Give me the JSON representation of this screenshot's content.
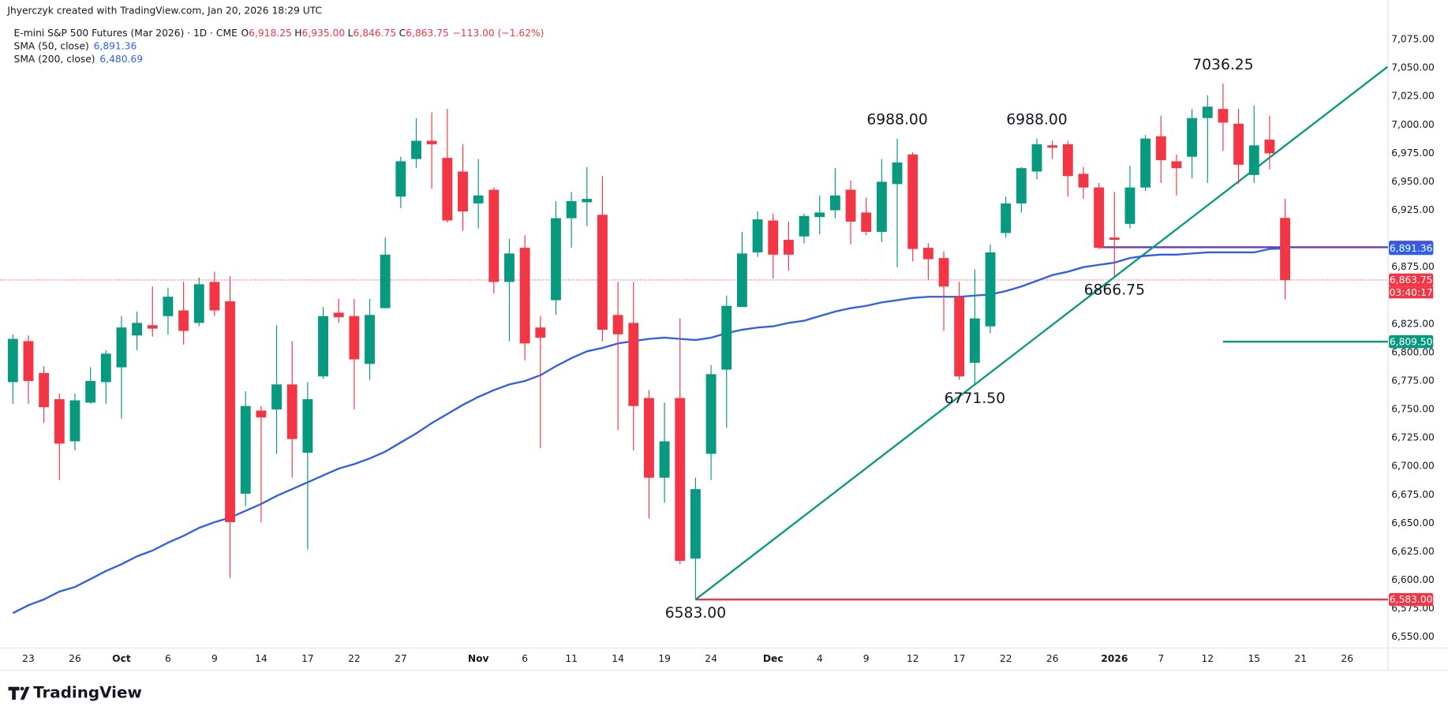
{
  "chart_data": {
    "type": "candlestick",
    "attribution": "Jhyerczyk created with TradingView.com, Jan 20, 2026 18:29 UTC",
    "symbol": "E-mini S&P 500 Futures (Mar 2026) · 1D · CME",
    "ohlc_legend": [
      {
        "key": "O",
        "value": "6,918.25"
      },
      {
        "key": "H",
        "value": "6,935.00"
      },
      {
        "key": "L",
        "value": "6,846.75"
      },
      {
        "key": "C",
        "value": "6,863.75"
      }
    ],
    "change": "−113.00 (−1.62%)",
    "brand": "TradingView",
    "up_color": "#089981",
    "down_color": "#f23645",
    "open": [
      6774,
      6810,
      6782,
      6759,
      6722,
      6756,
      6774,
      6787,
      6815,
      6824,
      6832,
      6837,
      6826,
      6862,
      6845,
      6676,
      6749,
      6750,
      6772,
      6712,
      6779,
      6835,
      6832,
      6790,
      6839,
      6937,
      6970,
      6986,
      6971,
      6959,
      6931,
      6943,
      6862,
      6892,
      6822,
      6846,
      6918,
      6932,
      6921,
      6833,
      6826,
      6760,
      6690,
      6760,
      6619,
      6711,
      6785,
      6840,
      6888,
      6916,
      6899,
      6902,
      6919,
      6925,
      6943,
      6923,
      6906,
      6948,
      6974,
      6892,
      6883,
      6849,
      6791,
      6823,
      6905,
      6931,
      6959,
      6982,
      6983,
      6957,
      6945,
      6901,
      6913,
      6945,
      6990,
      6968,
      6972,
      7006,
      7014,
      7001,
      6956,
      6987,
      6918.25
    ],
    "high": [
      6816,
      6815,
      6788,
      6764,
      6764,
      6787,
      6802,
      6832,
      6836,
      6858,
      6857,
      6862,
      6866,
      6871,
      6867,
      6766,
      6753,
      6824,
      6810,
      6774,
      6840,
      6847,
      6847,
      6847,
      6901,
      6972,
      7006,
      7011,
      7014,
      6983,
      6970,
      6945,
      6900,
      6903,
      6832,
      6933,
      6941,
      6963,
      6955,
      6862,
      6862,
      6767,
      6756,
      6830,
      6690,
      6789,
      6850,
      6906,
      6924,
      6922,
      6915,
      6922,
      6938,
      6962,
      6951,
      6936,
      6970,
      6988,
      6976,
      6896,
      6889,
      6862,
      6873,
      6895,
      6937,
      6963,
      6988,
      6986,
      6986,
      6963,
      6949,
      6941,
      6964,
      6991,
      7008,
      6974,
      7014,
      7026,
      7036.25,
      7014,
      7017,
      7008,
      6935
    ],
    "low": [
      6755,
      6755,
      6738,
      6688,
      6714,
      6755,
      6755,
      6742,
      6802,
      6814,
      6816,
      6807,
      6823,
      6832,
      6602,
      6665,
      6651,
      6711,
      6690,
      6627,
      6777,
      6826,
      6750,
      6776,
      6839,
      6927,
      6962,
      6944,
      6914,
      6907,
      6909,
      6852,
      6810,
      6793,
      6716,
      6833,
      6892,
      6911,
      6810,
      6732,
      6714,
      6654,
      6668,
      6614,
      6583,
      6688,
      6734,
      6840,
      6884,
      6865,
      6872,
      6896,
      6904,
      6918,
      6895,
      6903,
      6897,
      6875,
      6880,
      6864,
      6819,
      6776,
      6771.5,
      6817,
      6901,
      6923,
      6952,
      6970,
      6937,
      6935,
      6891,
      6866.75,
      6909,
      6942,
      6949,
      6938,
      6953,
      6949,
      6977,
      6948,
      6949,
      6961,
      6846.75
    ],
    "close": [
      6812,
      6775,
      6752,
      6720,
      6758,
      6775,
      6799,
      6822,
      6826,
      6821,
      6849,
      6819,
      6860,
      6837,
      6651,
      6753,
      6743,
      6772,
      6724,
      6759,
      6832,
      6831,
      6794,
      6833,
      6886,
      6968,
      6986,
      6983,
      6916,
      6924,
      6938,
      6862,
      6887,
      6808,
      6813,
      6918,
      6933,
      6935,
      6820,
      6816,
      6753,
      6690,
      6722,
      6617,
      6680,
      6781,
      6841,
      6887,
      6917,
      6886,
      6886,
      6920,
      6923,
      6938,
      6915,
      6906,
      6950,
      6967,
      6891,
      6882,
      6858,
      6779,
      6830,
      6888,
      6931,
      6962,
      6983,
      6980,
      6955,
      6945,
      6892,
      6899,
      6945,
      6988,
      6969,
      6962,
      7006,
      7016,
      7002,
      6965,
      6982,
      6975,
      6863.75
    ],
    "series": [
      {
        "name": "SMA (50, close)",
        "value_label": "6,891.36",
        "color": "#2f5fe8",
        "values": [
          6571,
          6578,
          6583,
          6590,
          6594,
          6601,
          6608,
          6614,
          6621,
          6626,
          6633,
          6639,
          6646,
          6651,
          6655,
          6661,
          6667,
          6674,
          6680,
          6686,
          6692,
          6698,
          6702,
          6707,
          6713,
          6721,
          6729,
          6738,
          6746,
          6754,
          6761,
          6767,
          6772,
          6775,
          6780,
          6788,
          6795,
          6801,
          6804,
          6808,
          6810,
          6812,
          6813,
          6812,
          6811,
          6813,
          6817,
          6820,
          6822,
          6823,
          6826,
          6828,
          6832,
          6836,
          6839,
          6841,
          6844,
          6846,
          6848,
          6849,
          6849,
          6849,
          6850,
          6851,
          6854,
          6858,
          6863,
          6868,
          6871,
          6875,
          6877,
          6879,
          6883,
          6885,
          6886,
          6886,
          6887,
          6888,
          6888,
          6888,
          6888,
          6891,
          6891.36
        ]
      },
      {
        "name": "SMA (200, close)",
        "value_label": "6,480.69",
        "color": "#2f5fe8"
      }
    ],
    "xlim": [
      -0.83,
      88.63
    ],
    "xticks": [
      {
        "value": 1,
        "label": "23"
      },
      {
        "value": 4,
        "label": "26"
      },
      {
        "value": 7,
        "label": "Oct"
      },
      {
        "value": 10,
        "label": "6"
      },
      {
        "value": 13,
        "label": "9"
      },
      {
        "value": 16,
        "label": "14"
      },
      {
        "value": 19,
        "label": "17"
      },
      {
        "value": 22,
        "label": "22"
      },
      {
        "value": 25,
        "label": "27"
      },
      {
        "value": 30,
        "label": "Nov"
      },
      {
        "value": 33,
        "label": "6"
      },
      {
        "value": 36,
        "label": "11"
      },
      {
        "value": 39,
        "label": "14"
      },
      {
        "value": 42,
        "label": "19"
      },
      {
        "value": 45,
        "label": "24"
      },
      {
        "value": 49,
        "label": "Dec"
      },
      {
        "value": 52,
        "label": "4"
      },
      {
        "value": 55,
        "label": "9"
      },
      {
        "value": 58,
        "label": "12"
      },
      {
        "value": 61,
        "label": "17"
      },
      {
        "value": 64,
        "label": "22"
      },
      {
        "value": 67,
        "label": "26"
      },
      {
        "value": 71,
        "label": "2026"
      },
      {
        "value": 74,
        "label": "7"
      },
      {
        "value": 77,
        "label": "12"
      },
      {
        "value": 80,
        "label": "15"
      },
      {
        "value": 83,
        "label": "21"
      },
      {
        "value": 86,
        "label": "26"
      }
    ],
    "ylim": [
      6542,
      7087
    ],
    "yticks": [
      {
        "value": 7075,
        "label": "7,075.00"
      },
      {
        "value": 7050,
        "label": "7,050.00"
      },
      {
        "value": 7025,
        "label": "7,025.00"
      },
      {
        "value": 7000,
        "label": "7,000.00"
      },
      {
        "value": 6975,
        "label": "6,975.00"
      },
      {
        "value": 6950,
        "label": "6,950.00"
      },
      {
        "value": 6925,
        "label": "6,925.00"
      },
      {
        "value": 6875,
        "label": "6,875.00"
      },
      {
        "value": 6825,
        "label": "6,825.00"
      },
      {
        "value": 6800,
        "label": "6,800.00"
      },
      {
        "value": 6775,
        "label": "6,775.00"
      },
      {
        "value": 6750,
        "label": "6,750.00"
      },
      {
        "value": 6725,
        "label": "6,725.00"
      },
      {
        "value": 6700,
        "label": "6,700.00"
      },
      {
        "value": 6675,
        "label": "6,675.00"
      },
      {
        "value": 6650,
        "label": "6,650.00"
      },
      {
        "value": 6625,
        "label": "6,625.00"
      },
      {
        "value": 6600,
        "label": "6,600.00"
      },
      {
        "value": 6575,
        "label": "6,575.00"
      },
      {
        "value": 6550,
        "label": "6,550.00"
      }
    ],
    "grid": false,
    "trendline": {
      "color": "#089981",
      "x": [
        44,
        88.6
      ],
      "values": [
        6583,
        7051
      ]
    },
    "levels": [
      {
        "value": 6892.5,
        "label": "6,892.50",
        "color": "#673ab7",
        "from": 70
      },
      {
        "value": 6809.5,
        "label": "6,809.50",
        "color": "#089981",
        "from": 78
      },
      {
        "value": 6583,
        "label": "6,583.00",
        "color": "#f23645",
        "from": 44
      }
    ],
    "last_price": {
      "value": 6863.75,
      "label": "6,863.75",
      "countdown": "03:40:17",
      "color": "#f23645"
    },
    "annotations": [
      {
        "x": 78,
        "value": 7036.25,
        "label": "7036.25"
      },
      {
        "x": 57,
        "value": 6988,
        "label": "6988.00"
      },
      {
        "x": 66,
        "value": 6988,
        "label": "6988.00"
      },
      {
        "x": 71,
        "value": 6866.75,
        "label": "6866.75"
      },
      {
        "x": 62,
        "value": 6771.5,
        "label": "6771.50"
      },
      {
        "x": 44,
        "value": 6583,
        "label": "6583.00"
      }
    ]
  }
}
